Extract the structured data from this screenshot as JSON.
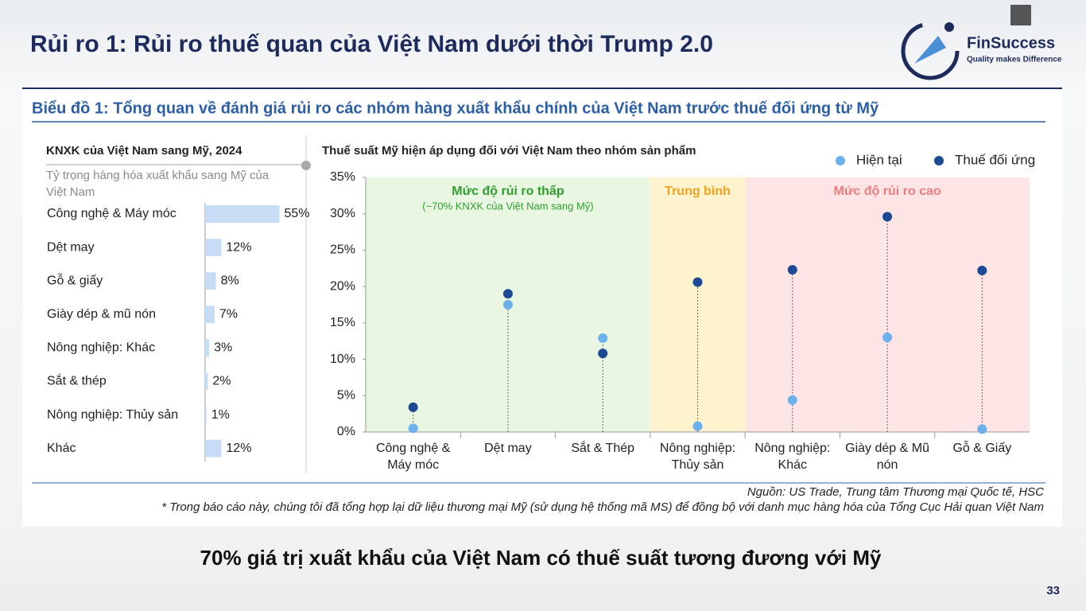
{
  "slide": {
    "title": "Rủi ro 1: Rủi ro thuế quan của Việt Nam dưới thời Trump 2.0",
    "logo_name": "FinSuccess",
    "logo_tagline": "Quality makes Difference",
    "subtitle": "Biểu đồ 1: Tổng quan về đánh giá rủi ro các nhóm hàng xuất khẩu chính của Việt Nam trước thuế đối ứng từ Mỹ",
    "source": "Nguồn: US Trade, Trung tâm Thương mại Quốc tế, HSC",
    "note": "* Trong báo cáo này, chúng tôi đã tổng hợp lại dữ liệu thương mại Mỹ (sử dụng hệ thống mã MS) để đồng bộ với danh mục hàng hóa của Tổng Cục Hải quan Việt Nam",
    "caption": "70% giá trị xuất khẩu của Việt Nam có thuế suất tương đương với Mỹ",
    "page_number": "33"
  },
  "chart_data": [
    {
      "type": "bar",
      "orientation": "horizontal",
      "title": "KNXK của Việt Nam sang Mỹ, 2024",
      "subtitle": "Tỷ trọng hàng hóa xuất khẩu sang Mỹ của Việt Nam",
      "categories": [
        "Công nghệ & Máy móc",
        "Dệt may",
        "Gỗ & giấy",
        "Giày dép & mũ nón",
        "Nông nghiệp: Khác",
        "Sắt & thép",
        "Nông nghiệp: Thủy sản",
        "Khác"
      ],
      "values": [
        55,
        12,
        8,
        7,
        3,
        2,
        1,
        12
      ],
      "value_labels": [
        "55%",
        "12%",
        "8%",
        "7%",
        "3%",
        "2%",
        "1%",
        "12%"
      ],
      "color": "#c6ddf5"
    },
    {
      "type": "dot",
      "title": "Thuế suất Mỹ hiện áp dụng đối với Việt Nam theo nhóm sản phẩm",
      "categories": [
        "Công nghệ & Máy móc",
        "Dệt may",
        "Sắt & Thép",
        "Nông nghiệp: Thủy sản",
        "Nông nghiệp: Khác",
        "Giày dép & Mũ nón",
        "Gỗ & Giấy"
      ],
      "series": [
        {
          "name": "Hiện tại",
          "color": "#6cb0ee",
          "values": [
            0.5,
            17.5,
            12.9,
            0.8,
            4.4,
            13,
            0.4
          ]
        },
        {
          "name": "Thuế đối ứng",
          "color": "#1c4a94",
          "values": [
            3.4,
            19,
            10.8,
            20.6,
            22.3,
            29.6,
            22.2
          ]
        }
      ],
      "ylim": [
        0,
        35
      ],
      "yticks": [
        {
          "value": 0,
          "label": "0%"
        },
        {
          "value": 5,
          "label": "5%"
        },
        {
          "value": 10,
          "label": "10%"
        },
        {
          "value": 15,
          "label": "15%"
        },
        {
          "value": 20,
          "label": "20%"
        },
        {
          "value": 25,
          "label": "25%"
        },
        {
          "value": 30,
          "label": "30%"
        },
        {
          "value": 35,
          "label": "35%"
        }
      ],
      "legend": "top-right",
      "regions": [
        {
          "label": "Mức độ rủi ro thấp",
          "note": "(~70% KNXK của Việt Nam sang Mỹ)",
          "from": "Công nghệ & Máy móc",
          "to": "Sắt & Thép",
          "color": "#e9f6e1",
          "label_color": "#2f9e2f"
        },
        {
          "label": "Trung bình",
          "from": "Nông nghiệp: Thủy sản",
          "to": "Nông nghiệp: Thủy sản",
          "color": "#fff3cf",
          "label_color": "#f0a21e"
        },
        {
          "label": "Mức độ rủi ro cao",
          "from": "Nông nghiệp: Khác",
          "to": "Gỗ & Giấy",
          "color": "#fde5e6",
          "label_color": "#ef7d80"
        }
      ]
    }
  ]
}
